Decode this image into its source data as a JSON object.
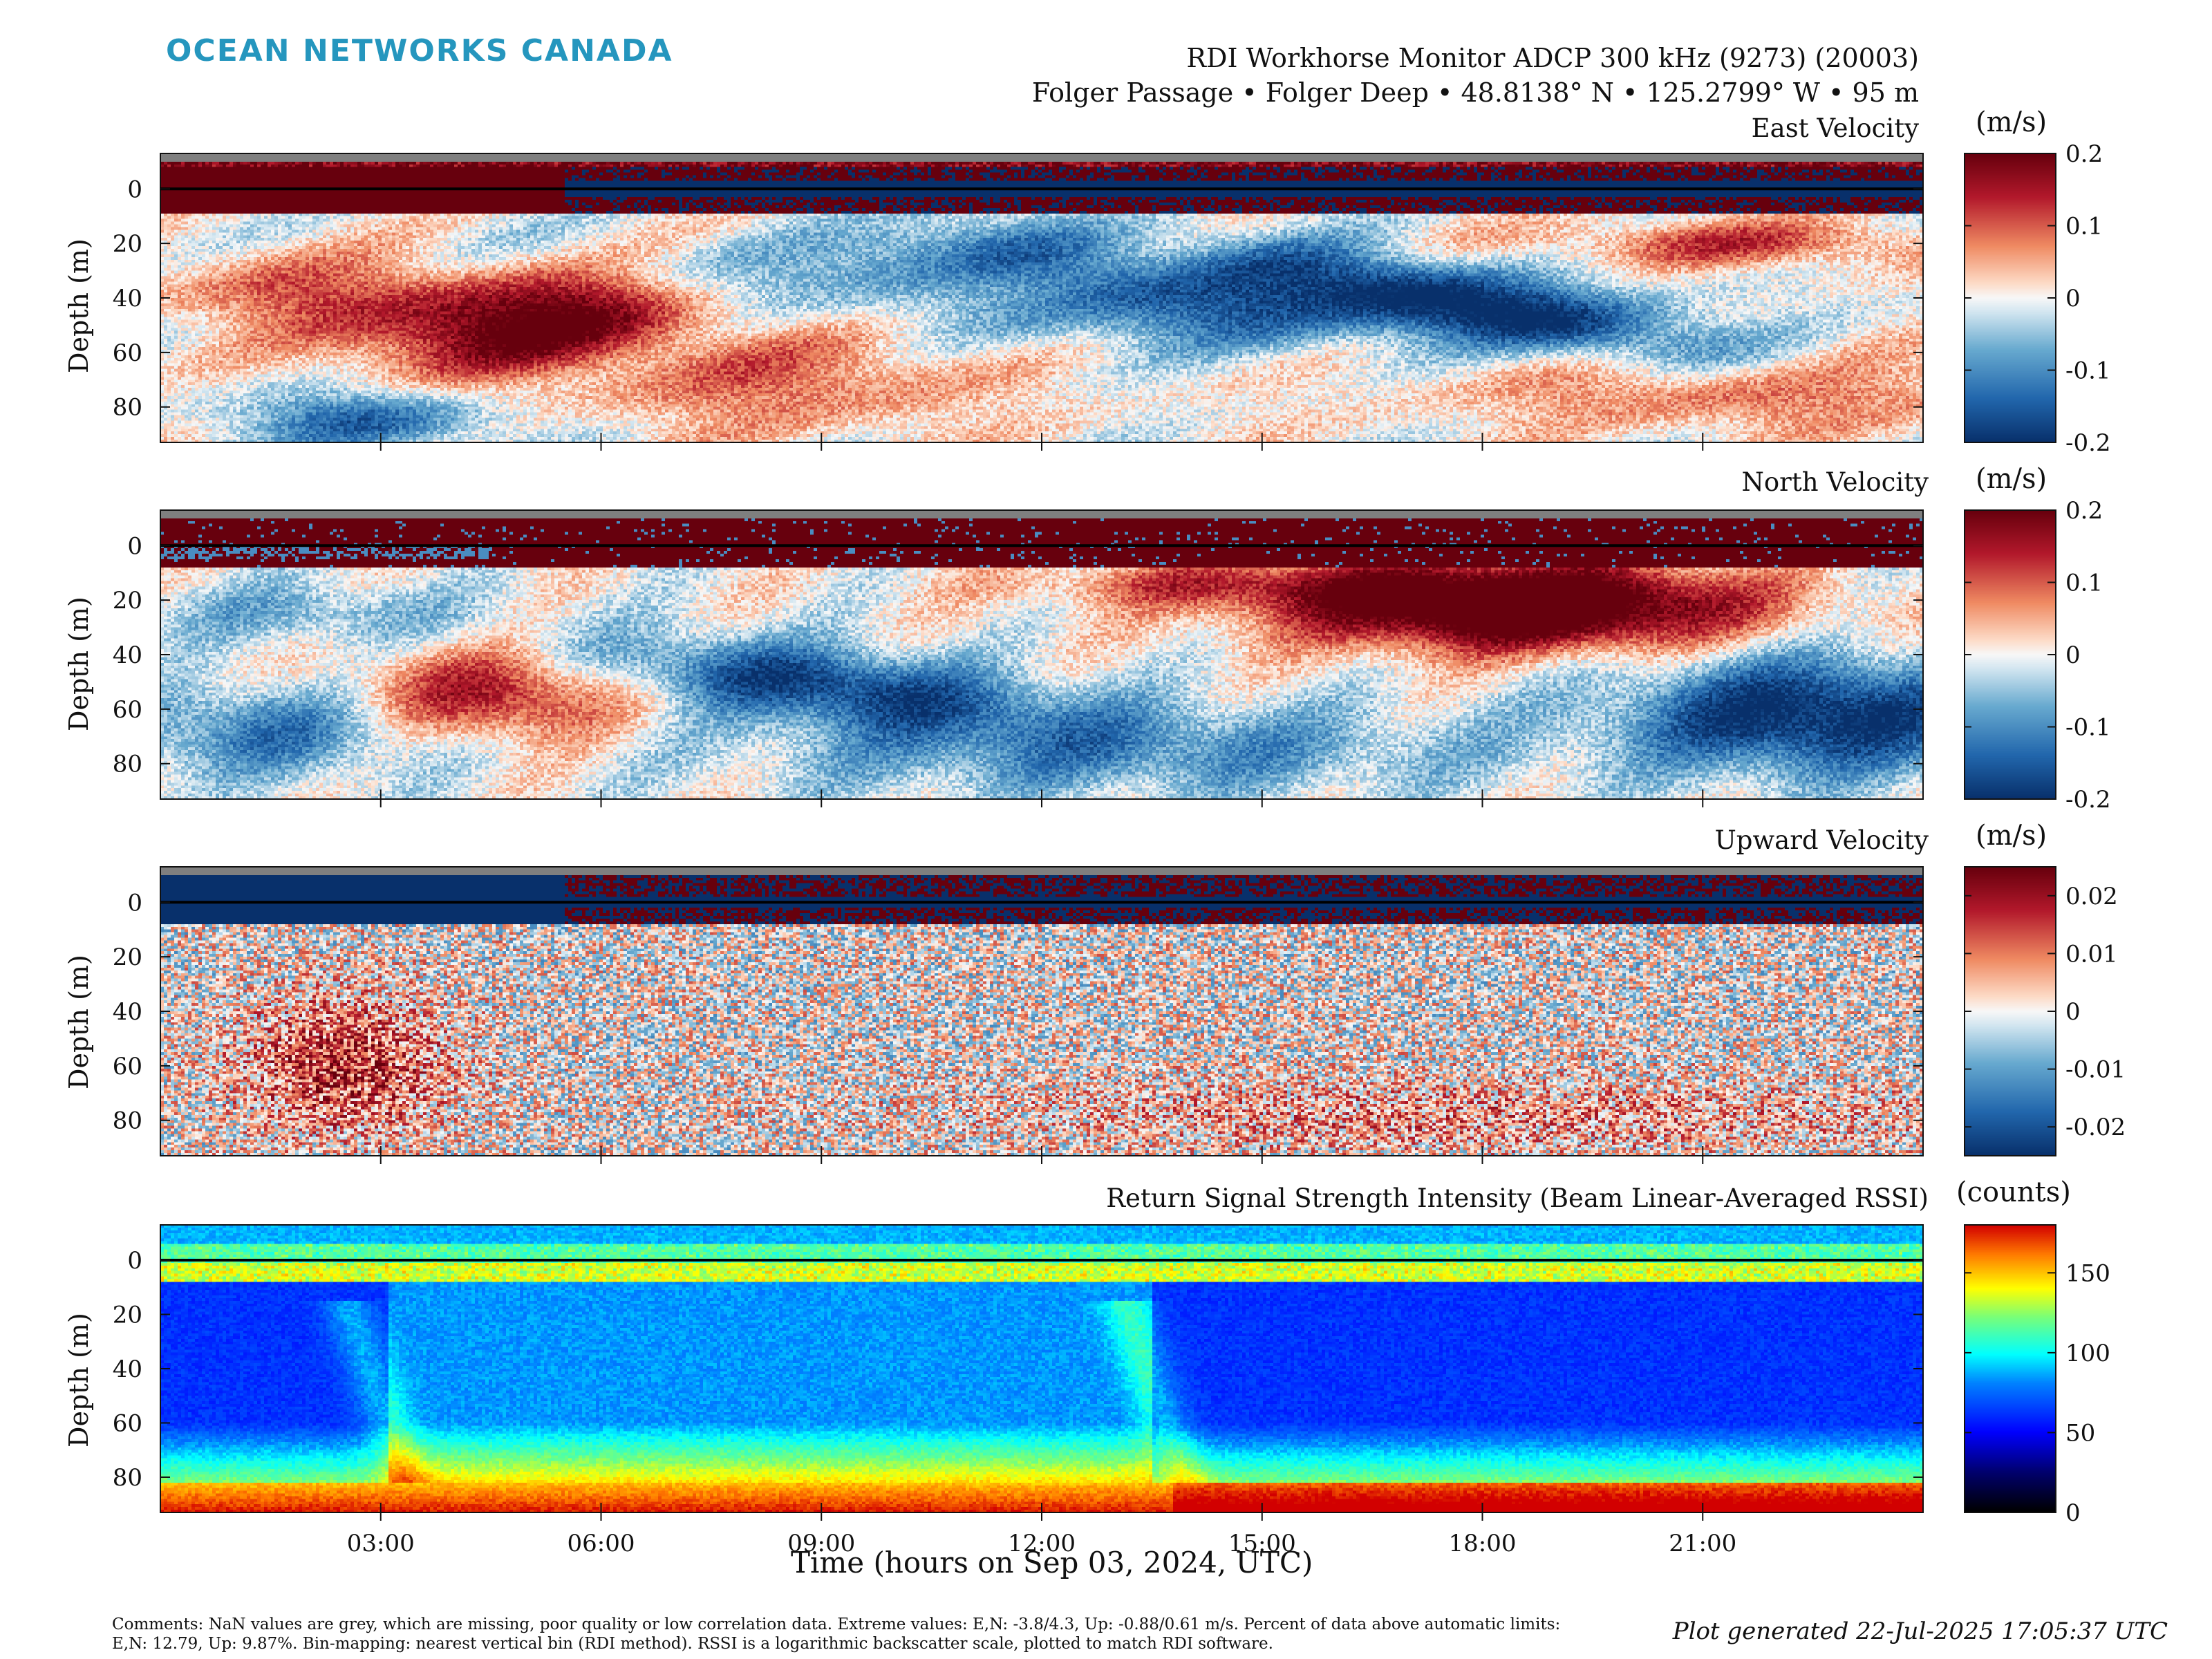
{
  "header": {
    "logo_text": "OCEAN NETWORKS CANADA",
    "title_line1": "RDI Workhorse Monitor ADCP 300 kHz (9273) (20003)",
    "title_line2": "Folger Passage • Folger Deep • 48.8138° N • 125.2799° W • 95 m"
  },
  "chart_data": [
    {
      "type": "heatmap",
      "title": "East Velocity",
      "ylabel": "Depth (m)",
      "yticks": [
        0,
        20,
        40,
        60,
        80
      ],
      "ylim": [
        -13,
        93
      ],
      "y_reversed": true,
      "colorbar": {
        "unit": "(m/s)",
        "ticks": [
          "0.2",
          "0.1",
          "0",
          "-0.1",
          "-0.2"
        ],
        "range": [
          -0.2,
          0.2
        ],
        "colormap": "red-white-blue"
      },
      "features": [
        {
          "depth_range": [
            -13,
            -10
          ],
          "value": "NaN (grey)"
        },
        {
          "depth_range": [
            -10,
            8
          ],
          "value": "saturated near-surface bins"
        },
        {
          "time_range": [
            3.0,
            7.0
          ],
          "depth_range": [
            40,
            70
          ],
          "value": 0.22
        },
        {
          "time_range": [
            9.0,
            14.0
          ],
          "depth_range": [
            15,
            40
          ],
          "value": -0.12
        },
        {
          "time_range": [
            17.0,
            19.5
          ],
          "depth_range": [
            40,
            60
          ],
          "value": -0.18
        },
        {
          "time_range": [
            19.5,
            23.0
          ],
          "depth_range": [
            15,
            30
          ],
          "value": 0.1
        },
        {
          "time_range": [
            1.5,
            3.5
          ],
          "depth_range": [
            75,
            90
          ],
          "value": -0.15
        }
      ]
    },
    {
      "type": "heatmap",
      "title": "North Velocity",
      "ylabel": "Depth (m)",
      "yticks": [
        0,
        20,
        40,
        60,
        80
      ],
      "ylim": [
        -13,
        93
      ],
      "y_reversed": true,
      "colorbar": {
        "unit": "(m/s)",
        "ticks": [
          "0.2",
          "0.1",
          "0",
          "-0.1",
          "-0.2"
        ],
        "range": [
          -0.2,
          0.2
        ],
        "colormap": "red-white-blue"
      },
      "features": [
        {
          "depth_range": [
            -13,
            -10
          ],
          "value": "NaN (grey)"
        },
        {
          "depth_range": [
            -10,
            8
          ],
          "value": 0.25
        },
        {
          "time_range": [
            16.0,
            21.5
          ],
          "depth_range": [
            10,
            40
          ],
          "value": 0.28
        },
        {
          "time_range": [
            6.0,
            11.5
          ],
          "depth_range": [
            40,
            70
          ],
          "value": -0.15
        },
        {
          "time_range": [
            19.5,
            24.0
          ],
          "depth_range": [
            50,
            90
          ],
          "value": -0.2
        },
        {
          "time_range": [
            2.5,
            5.5
          ],
          "depth_range": [
            45,
            70
          ],
          "value": 0.15
        }
      ]
    },
    {
      "type": "heatmap",
      "title": "Upward Velocity",
      "ylabel": "Depth (m)",
      "yticks": [
        0,
        20,
        40,
        60,
        80
      ],
      "ylim": [
        -13,
        93
      ],
      "y_reversed": true,
      "colorbar": {
        "unit": "(m/s)",
        "ticks": [
          "0.02",
          "0.01",
          "0",
          "-0.01",
          "-0.02"
        ],
        "range": [
          -0.025,
          0.025
        ],
        "colormap": "red-white-blue"
      },
      "features": [
        {
          "depth_range": [
            -13,
            -10
          ],
          "value": "NaN (grey)"
        },
        {
          "time_range": [
            0,
            5.5
          ],
          "depth_range": [
            -10,
            8
          ],
          "value": -0.02
        },
        {
          "time_range": [
            5.5,
            24
          ],
          "depth_range": [
            -10,
            8
          ],
          "value": "alternating ±0.02"
        },
        {
          "time_range": [
            1.5,
            4.0
          ],
          "depth_range": [
            40,
            85
          ],
          "value": 0.012
        },
        {
          "time_range": [
            13.5,
            23.5
          ],
          "depth_range": [
            60,
            90
          ],
          "value": 0.007
        }
      ]
    },
    {
      "type": "heatmap",
      "title": "Return Signal Strength Intensity (Beam Linear-Averaged RSSI)",
      "ylabel": "Depth (m)",
      "xlabel": "Time (hours on Sep 03, 2024, UTC)",
      "xticks": [
        "03:00",
        "06:00",
        "09:00",
        "12:00",
        "15:00",
        "18:00",
        "21:00"
      ],
      "xlim_hours": [
        0,
        24
      ],
      "yticks": [
        0,
        20,
        40,
        60,
        80
      ],
      "ylim": [
        -13,
        93
      ],
      "y_reversed": true,
      "colorbar": {
        "unit": "(counts)",
        "ticks": [
          "150",
          "100",
          "50",
          "0"
        ],
        "range": [
          0,
          180
        ],
        "colormap": "jet-like"
      },
      "features": [
        {
          "depth_range": [
            -13,
            -6
          ],
          "value": 95
        },
        {
          "depth_range": [
            -6,
            8
          ],
          "value": 130
        },
        {
          "time_range": [
            0,
            24
          ],
          "depth_range": [
            80,
            93
          ],
          "value": 165
        },
        {
          "time_range": [
            3.0,
            13.5
          ],
          "depth_range": [
            15,
            80
          ],
          "value": 85
        },
        {
          "time_range": [
            13.5,
            24
          ],
          "depth_range": [
            10,
            60
          ],
          "value": 60
        }
      ]
    }
  ],
  "labels": {
    "ylabel": "Depth (m)",
    "xlabel": "Time (hours on Sep 03, 2024, UTC)"
  },
  "footer": {
    "comments": "Comments: NaN values are grey, which are missing, poor quality or low correlation data. Extreme values: E,N: -3.8/4.3, Up: -0.88/0.61 m/s. Percent of data above automatic limits: E,N: 12.79, Up: 9.87%. Bin-mapping: nearest vertical bin (RDI method). RSSI is a logarithmic backscatter scale, plotted to match RDI software.",
    "generated": "Plot generated 22-Jul-2025 17:05:37 UTC"
  },
  "colors": {
    "logo": "#2596be",
    "nan_grey": "#7f7f7f",
    "axis": "#111111"
  }
}
